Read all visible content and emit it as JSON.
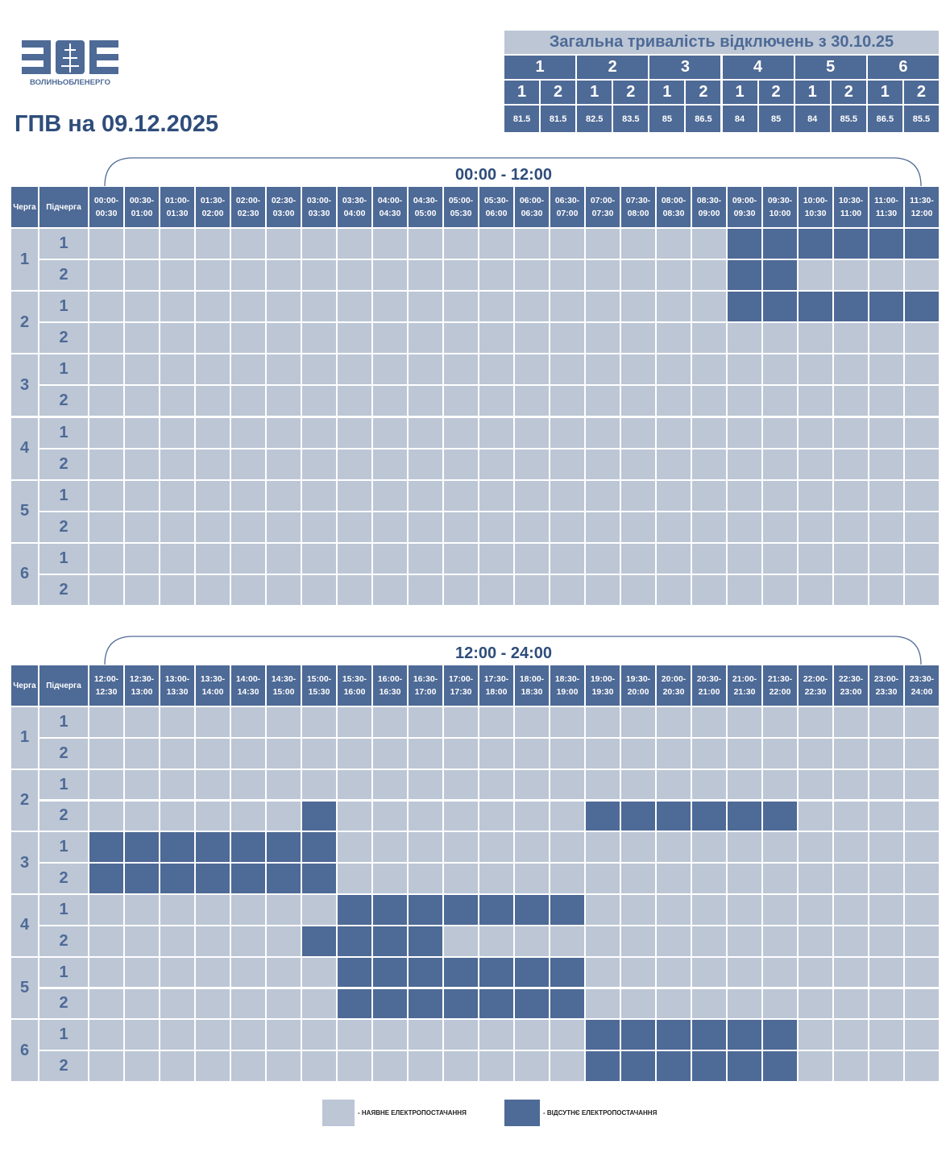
{
  "logo": {
    "text": "ВОЛИНЬОБЛЕНЕРГО"
  },
  "title": "ГПВ на 09.12.2025",
  "summary": {
    "title": "Загальна тривалість відключень з 30.10.25",
    "queues": [
      1,
      2,
      3,
      4,
      5,
      6
    ],
    "subqueues": [
      1,
      2,
      1,
      2,
      1,
      2,
      1,
      2,
      1,
      2,
      1,
      2
    ],
    "values": [
      81.5,
      81.5,
      82.5,
      83.5,
      85,
      86.5,
      84,
      85,
      84,
      85.5,
      86.5,
      85.5
    ]
  },
  "schedules": [
    {
      "period": "00:00 - 12:00",
      "headers": [
        "Черга",
        "Підчерга"
      ],
      "slots": [
        "00:00-00:30",
        "00:30-01:00",
        "01:00-01:30",
        "01:30-02:00",
        "02:00-02:30",
        "02:30-03:00",
        "03:00-03:30",
        "03:30-04:00",
        "04:00-04:30",
        "04:30-05:00",
        "05:00-05:30",
        "05:30-06:00",
        "06:00-06:30",
        "06:30-07:00",
        "07:00-07:30",
        "07:30-08:00",
        "08:00-08:30",
        "08:30-09:00",
        "09:00-09:30",
        "09:30-10:00",
        "10:00-10:30",
        "10:30-11:00",
        "11:00-11:30",
        "11:30-12:00"
      ],
      "rows": [
        {
          "queue": 1,
          "subrows": [
            {
              "subqueue": 1,
              "off": [
                0,
                0,
                0,
                0,
                0,
                0,
                0,
                0,
                0,
                0,
                0,
                0,
                0,
                0,
                0,
                0,
                0,
                0,
                1,
                1,
                1,
                1,
                1,
                1
              ]
            },
            {
              "subqueue": 2,
              "off": [
                0,
                0,
                0,
                0,
                0,
                0,
                0,
                0,
                0,
                0,
                0,
                0,
                0,
                0,
                0,
                0,
                0,
                0,
                1,
                1,
                0,
                0,
                0,
                0
              ]
            }
          ]
        },
        {
          "queue": 2,
          "subrows": [
            {
              "subqueue": 1,
              "off": [
                0,
                0,
                0,
                0,
                0,
                0,
                0,
                0,
                0,
                0,
                0,
                0,
                0,
                0,
                0,
                0,
                0,
                0,
                1,
                1,
                1,
                1,
                1,
                1
              ]
            },
            {
              "subqueue": 2,
              "off": [
                0,
                0,
                0,
                0,
                0,
                0,
                0,
                0,
                0,
                0,
                0,
                0,
                0,
                0,
                0,
                0,
                0,
                0,
                0,
                0,
                0,
                0,
                0,
                0
              ]
            }
          ]
        },
        {
          "queue": 3,
          "subrows": [
            {
              "subqueue": 1,
              "off": [
                0,
                0,
                0,
                0,
                0,
                0,
                0,
                0,
                0,
                0,
                0,
                0,
                0,
                0,
                0,
                0,
                0,
                0,
                0,
                0,
                0,
                0,
                0,
                0
              ]
            },
            {
              "subqueue": 2,
              "off": [
                0,
                0,
                0,
                0,
                0,
                0,
                0,
                0,
                0,
                0,
                0,
                0,
                0,
                0,
                0,
                0,
                0,
                0,
                0,
                0,
                0,
                0,
                0,
                0
              ]
            }
          ]
        },
        {
          "queue": 4,
          "subrows": [
            {
              "subqueue": 1,
              "off": [
                0,
                0,
                0,
                0,
                0,
                0,
                0,
                0,
                0,
                0,
                0,
                0,
                0,
                0,
                0,
                0,
                0,
                0,
                0,
                0,
                0,
                0,
                0,
                0
              ]
            },
            {
              "subqueue": 2,
              "off": [
                0,
                0,
                0,
                0,
                0,
                0,
                0,
                0,
                0,
                0,
                0,
                0,
                0,
                0,
                0,
                0,
                0,
                0,
                0,
                0,
                0,
                0,
                0,
                0
              ]
            }
          ]
        },
        {
          "queue": 5,
          "subrows": [
            {
              "subqueue": 1,
              "off": [
                0,
                0,
                0,
                0,
                0,
                0,
                0,
                0,
                0,
                0,
                0,
                0,
                0,
                0,
                0,
                0,
                0,
                0,
                0,
                0,
                0,
                0,
                0,
                0
              ]
            },
            {
              "subqueue": 2,
              "off": [
                0,
                0,
                0,
                0,
                0,
                0,
                0,
                0,
                0,
                0,
                0,
                0,
                0,
                0,
                0,
                0,
                0,
                0,
                0,
                0,
                0,
                0,
                0,
                0
              ]
            }
          ]
        },
        {
          "queue": 6,
          "subrows": [
            {
              "subqueue": 1,
              "off": [
                0,
                0,
                0,
                0,
                0,
                0,
                0,
                0,
                0,
                0,
                0,
                0,
                0,
                0,
                0,
                0,
                0,
                0,
                0,
                0,
                0,
                0,
                0,
                0
              ]
            },
            {
              "subqueue": 2,
              "off": [
                0,
                0,
                0,
                0,
                0,
                0,
                0,
                0,
                0,
                0,
                0,
                0,
                0,
                0,
                0,
                0,
                0,
                0,
                0,
                0,
                0,
                0,
                0,
                0
              ]
            }
          ]
        }
      ]
    },
    {
      "period": "12:00 - 24:00",
      "headers": [
        "Черга",
        "Підчерга"
      ],
      "slots": [
        "12:00-12:30",
        "12:30-13:00",
        "13:00-13:30",
        "13:30-14:00",
        "14:00-14:30",
        "14:30-15:00",
        "15:00-15:30",
        "15:30-16:00",
        "16:00-16:30",
        "16:30-17:00",
        "17:00-17:30",
        "17:30-18:00",
        "18:00-18:30",
        "18:30-19:00",
        "19:00-19:30",
        "19:30-20:00",
        "20:00-20:30",
        "20:30-21:00",
        "21:00-21:30",
        "21:30-22:00",
        "22:00-22:30",
        "22:30-23:00",
        "23:00-23:30",
        "23:30-24:00"
      ],
      "rows": [
        {
          "queue": 1,
          "subrows": [
            {
              "subqueue": 1,
              "off": [
                0,
                0,
                0,
                0,
                0,
                0,
                0,
                0,
                0,
                0,
                0,
                0,
                0,
                0,
                0,
                0,
                0,
                0,
                0,
                0,
                0,
                0,
                0,
                0
              ]
            },
            {
              "subqueue": 2,
              "off": [
                0,
                0,
                0,
                0,
                0,
                0,
                0,
                0,
                0,
                0,
                0,
                0,
                0,
                0,
                0,
                0,
                0,
                0,
                0,
                0,
                0,
                0,
                0,
                0
              ]
            }
          ]
        },
        {
          "queue": 2,
          "subrows": [
            {
              "subqueue": 1,
              "off": [
                0,
                0,
                0,
                0,
                0,
                0,
                0,
                0,
                0,
                0,
                0,
                0,
                0,
                0,
                0,
                0,
                0,
                0,
                0,
                0,
                0,
                0,
                0,
                0
              ]
            },
            {
              "subqueue": 2,
              "off": [
                0,
                0,
                0,
                0,
                0,
                0,
                1,
                0,
                0,
                0,
                0,
                0,
                0,
                0,
                1,
                1,
                1,
                1,
                1,
                1,
                0,
                0,
                0,
                0
              ]
            }
          ]
        },
        {
          "queue": 3,
          "subrows": [
            {
              "subqueue": 1,
              "off": [
                1,
                1,
                1,
                1,
                1,
                1,
                1,
                0,
                0,
                0,
                0,
                0,
                0,
                0,
                0,
                0,
                0,
                0,
                0,
                0,
                0,
                0,
                0,
                0
              ]
            },
            {
              "subqueue": 2,
              "off": [
                1,
                1,
                1,
                1,
                1,
                1,
                1,
                0,
                0,
                0,
                0,
                0,
                0,
                0,
                0,
                0,
                0,
                0,
                0,
                0,
                0,
                0,
                0,
                0
              ]
            }
          ]
        },
        {
          "queue": 4,
          "subrows": [
            {
              "subqueue": 1,
              "off": [
                0,
                0,
                0,
                0,
                0,
                0,
                0,
                1,
                1,
                1,
                1,
                1,
                1,
                1,
                0,
                0,
                0,
                0,
                0,
                0,
                0,
                0,
                0,
                0
              ]
            },
            {
              "subqueue": 2,
              "off": [
                0,
                0,
                0,
                0,
                0,
                0,
                1,
                1,
                1,
                1,
                0,
                0,
                0,
                0,
                0,
                0,
                0,
                0,
                0,
                0,
                0,
                0,
                0,
                0
              ]
            }
          ]
        },
        {
          "queue": 5,
          "subrows": [
            {
              "subqueue": 1,
              "off": [
                0,
                0,
                0,
                0,
                0,
                0,
                0,
                1,
                1,
                1,
                1,
                1,
                1,
                1,
                0,
                0,
                0,
                0,
                0,
                0,
                0,
                0,
                0,
                0
              ]
            },
            {
              "subqueue": 2,
              "off": [
                0,
                0,
                0,
                0,
                0,
                0,
                0,
                1,
                1,
                1,
                1,
                1,
                1,
                1,
                0,
                0,
                0,
                0,
                0,
                0,
                0,
                0,
                0,
                0
              ]
            }
          ]
        },
        {
          "queue": 6,
          "subrows": [
            {
              "subqueue": 1,
              "off": [
                0,
                0,
                0,
                0,
                0,
                0,
                0,
                0,
                0,
                0,
                0,
                0,
                0,
                0,
                1,
                1,
                1,
                1,
                1,
                1,
                0,
                0,
                0,
                0
              ]
            },
            {
              "subqueue": 2,
              "off": [
                0,
                0,
                0,
                0,
                0,
                0,
                0,
                0,
                0,
                0,
                0,
                0,
                0,
                0,
                1,
                1,
                1,
                1,
                1,
                1,
                0,
                0,
                0,
                0
              ]
            }
          ]
        }
      ]
    }
  ],
  "legend": [
    {
      "label": "- НАЯВНЕ ЕЛЕКТРОПОСТАЧАННЯ"
    },
    {
      "label": "- ВІДСУТНЄ ЕЛЕКТРОПОСТАЧАННЯ"
    }
  ]
}
